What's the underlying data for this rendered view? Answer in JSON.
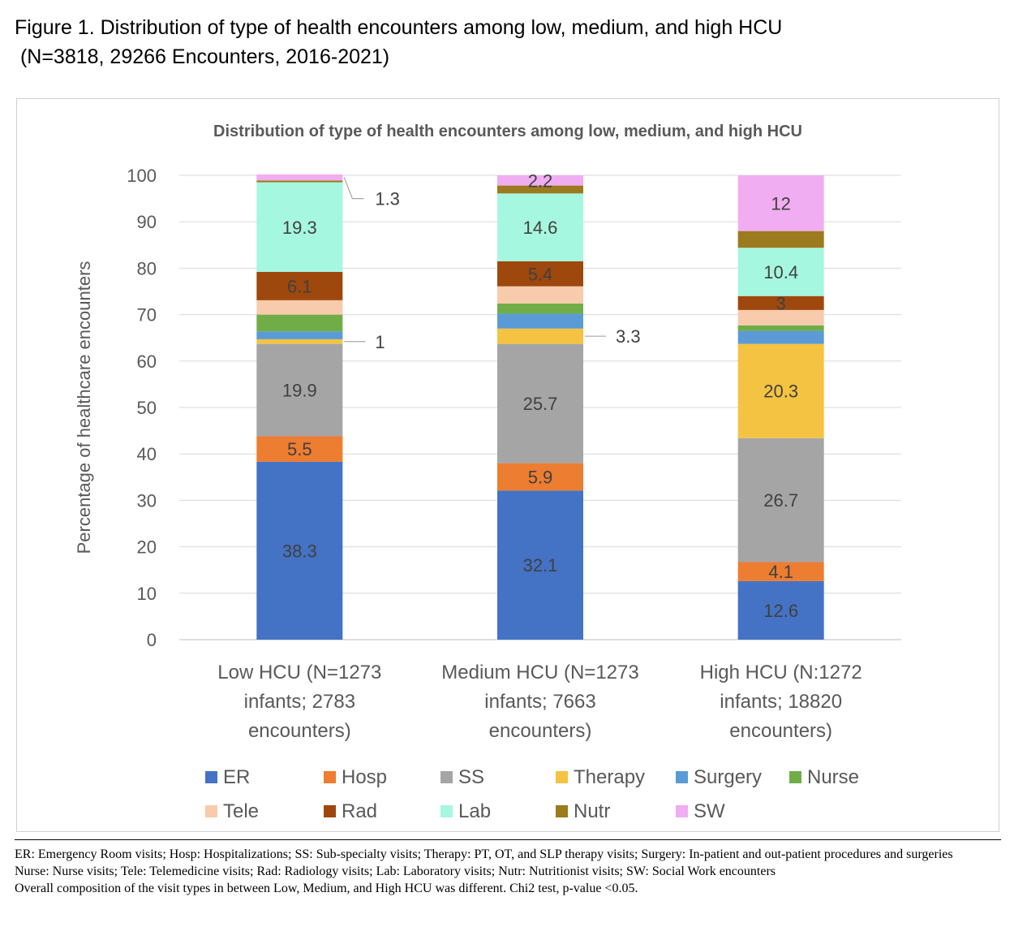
{
  "figure": {
    "title_line1": "Figure 1. Distribution of type of health encounters among low, medium, and high HCU",
    "title_line2": " (N=3818, 29266 Encounters, 2016-2021)"
  },
  "chart_data": {
    "type": "bar",
    "stacked": true,
    "title": "Distribution of type of health encounters among low, medium, and high HCU",
    "ylabel": "Percentage of healthcare encounters",
    "xlabel": "",
    "ylim": [
      0,
      100
    ],
    "yticks": [
      0,
      10,
      20,
      30,
      40,
      50,
      60,
      70,
      80,
      90,
      100
    ],
    "grid": true,
    "legend_position": "bottom",
    "categories": [
      "Low HCU (N=1273 infants; 2783 encounters)",
      "Medium HCU (N=1273 infants; 7663 encounters)",
      "High HCU (N:1272 infants; 18820 encounters)"
    ],
    "category_lines": [
      [
        "Low HCU (N=1273",
        "infants; 2783",
        "encounters)"
      ],
      [
        "Medium HCU (N=1273",
        "infants; 7663",
        "encounters)"
      ],
      [
        "High HCU (N:1272",
        "infants; 18820",
        "encounters)"
      ]
    ],
    "series": [
      {
        "name": "ER",
        "color": "#4472c4",
        "values": [
          38.3,
          32.1,
          12.6
        ],
        "labels": [
          "38.3",
          "32.1",
          "12.6"
        ]
      },
      {
        "name": "Hosp",
        "color": "#ed7d31",
        "values": [
          5.5,
          5.9,
          4.1
        ],
        "labels": [
          "5.5",
          "5.9",
          "4.1"
        ]
      },
      {
        "name": "SS",
        "color": "#a5a5a5",
        "values": [
          19.9,
          25.7,
          26.7
        ],
        "labels": [
          "19.9",
          "25.7",
          "26.7"
        ]
      },
      {
        "name": "Therapy",
        "color": "#f4c342",
        "values": [
          1,
          3.3,
          20.3
        ],
        "labels": [
          "1",
          "3.3",
          "20.3"
        ]
      },
      {
        "name": "Surgery",
        "color": "#5b9bd5",
        "values": [
          1.7,
          3.2,
          2.8
        ],
        "labels": [
          "",
          "",
          ""
        ]
      },
      {
        "name": "Nurse",
        "color": "#70ad47",
        "values": [
          3.6,
          2.2,
          1.2
        ],
        "labels": [
          "",
          "",
          ""
        ]
      },
      {
        "name": "Tele",
        "color": "#f8cbad",
        "values": [
          3.1,
          3.7,
          3.3
        ],
        "labels": [
          "",
          "",
          ""
        ]
      },
      {
        "name": "Rad",
        "color": "#9e480e",
        "values": [
          6.1,
          5.4,
          3
        ],
        "labels": [
          "6.1",
          "5.4",
          "3"
        ]
      },
      {
        "name": "Lab",
        "color": "#a6f7df",
        "values": [
          19.3,
          14.6,
          10.4
        ],
        "labels": [
          "19.3",
          "14.6",
          "10.4"
        ]
      },
      {
        "name": "Nutr",
        "color": "#9c7a1e",
        "values": [
          0.4,
          1.7,
          3.6
        ],
        "labels": [
          "",
          "",
          ""
        ]
      },
      {
        "name": "SW",
        "color": "#f1adf1",
        "values": [
          1.3,
          2.2,
          12
        ],
        "labels": [
          "1.3",
          "2.2",
          "12"
        ]
      }
    ],
    "legend_rows": [
      [
        "ER",
        "Hosp",
        "SS",
        "Therapy",
        "Surgery",
        "Nurse"
      ],
      [
        "Tele",
        "Rad",
        "Lab",
        "Nutr",
        "SW"
      ]
    ]
  },
  "footnotes": {
    "line1": "ER: Emergency Room visits; Hosp: Hospitalizations; SS: Sub-specialty visits; Therapy: PT, OT, and SLP therapy visits; Surgery: In-patient and out-patient procedures and surgeries",
    "line2": "Nurse: Nurse visits; Tele: Telemedicine visits; Rad: Radiology visits; Lab: Laboratory visits; Nutr: Nutritionist visits; SW: Social Work encounters",
    "line3": "Overall composition of the visit types in between Low, Medium, and High HCU was different. Chi2 test, p-value <0.05."
  }
}
